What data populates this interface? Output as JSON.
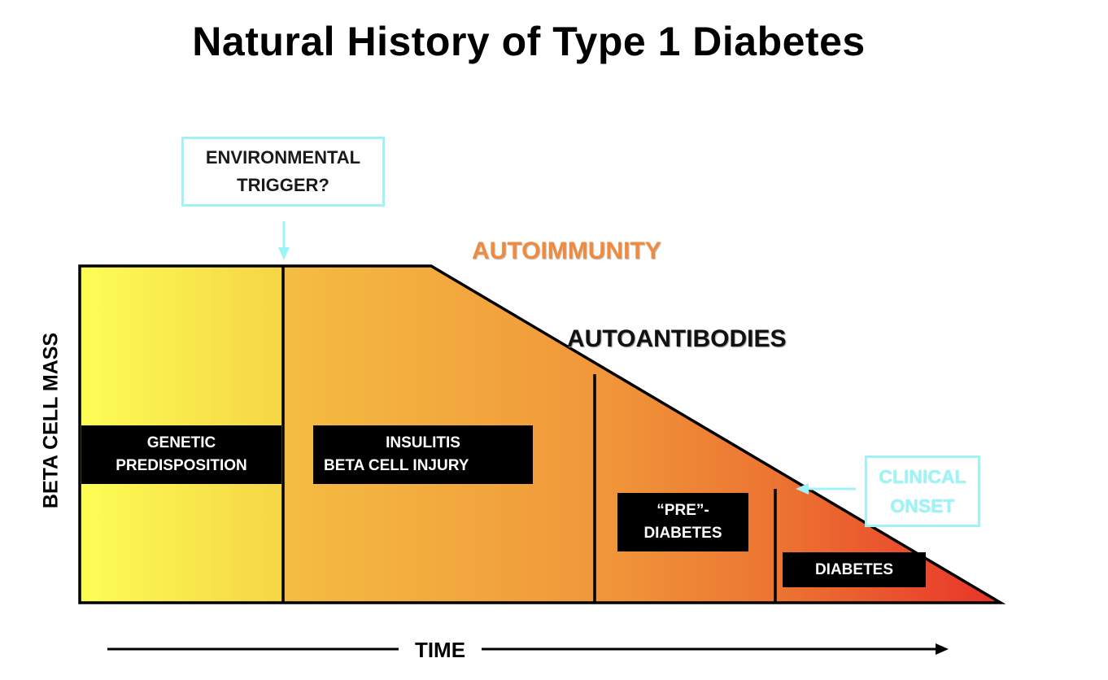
{
  "title": "Natural History of Type 1 Diabetes",
  "callouts": {
    "trigger_line1": "ENVIRONMENTAL",
    "trigger_line2": "TRIGGER?",
    "onset_line1": "CLINICAL",
    "onset_line2": "ONSET"
  },
  "phase_labels": {
    "autoimmunity": "AUTOIMMUNITY",
    "autoantibodies": "AUTOANTIBODIES"
  },
  "stages": {
    "genetic_line1": "GENETIC",
    "genetic_line2": "PREDISPOSITION",
    "insulitis_line1": "INSULITIS",
    "insulitis_line2": "BETA CELL INJURY",
    "prediabetes_line1": "“PRE”-",
    "prediabetes_line2": "DIABETES",
    "diabetes": "DIABETES"
  },
  "axes": {
    "y_label": "BETA CELL MASS",
    "x_label": "TIME"
  },
  "colors": {
    "stage_yellow": "#fdfd55",
    "stage_orange": "#f2a93b",
    "stage_red": "#e8332a",
    "callout_border": "#9ef3f6",
    "autoimmunity_text": "#f08a3c"
  }
}
